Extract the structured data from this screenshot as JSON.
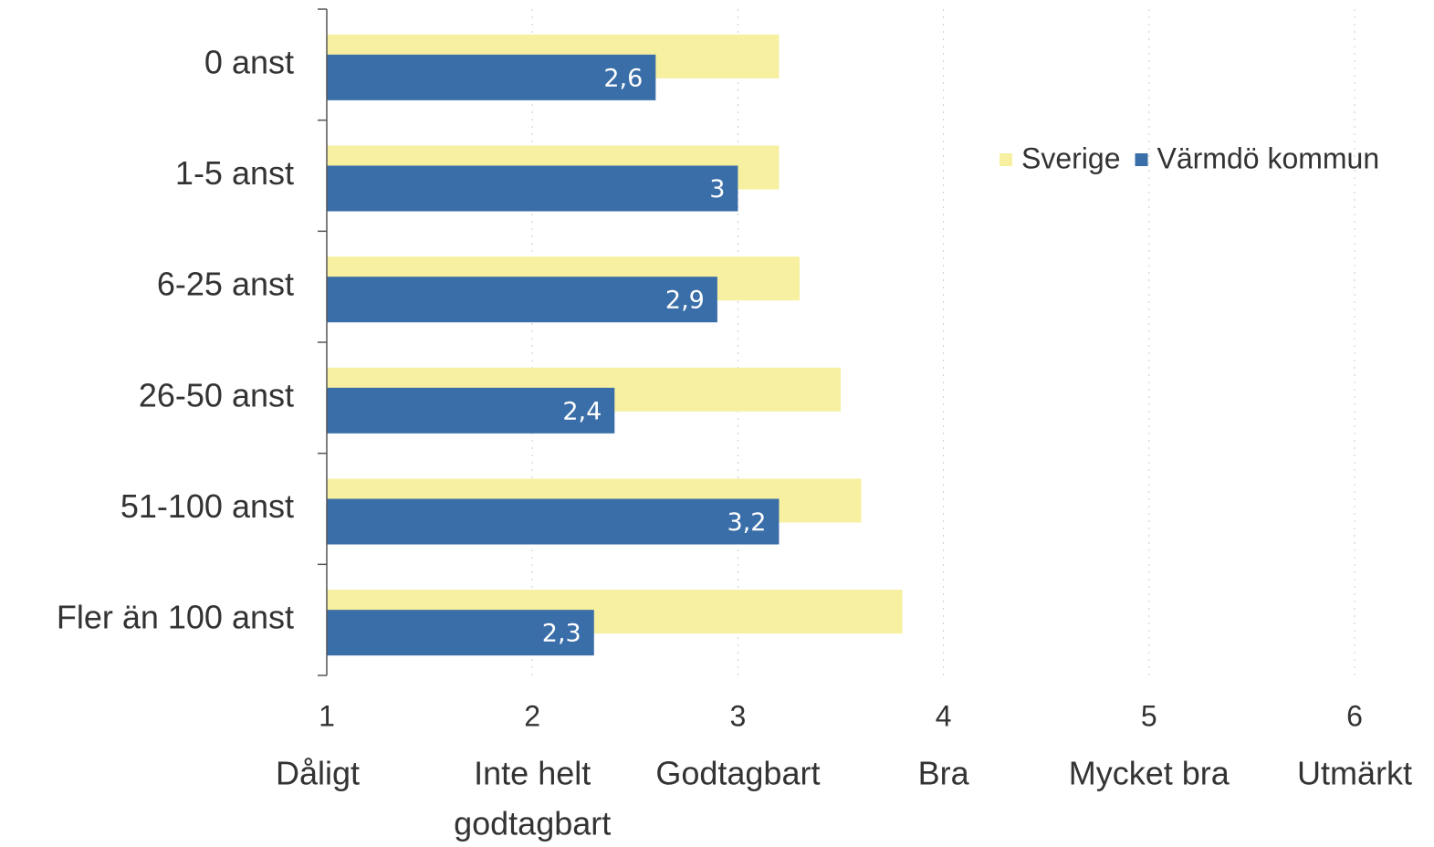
{
  "chart_data": {
    "type": "hbar",
    "categories": [
      "0 anst",
      "1-5 anst",
      "6-25 anst",
      "26-50 anst",
      "51-100 anst",
      "Fler än 100 anst"
    ],
    "series": [
      {
        "name": "Sverige",
        "color": "#f6f0a0",
        "values": [
          3.2,
          3.2,
          3.3,
          3.5,
          3.6,
          3.8
        ]
      },
      {
        "name": "Värmdö kommun",
        "color": "#3a6ea8",
        "values": [
          2.6,
          3,
          2.9,
          2.4,
          3.2,
          2.3
        ],
        "value_labels": [
          "2,6",
          "3",
          "2,9",
          "2,4",
          "3,2",
          "2,3"
        ]
      }
    ],
    "xlim": [
      1,
      6
    ],
    "xticks": [
      1,
      2,
      3,
      4,
      5,
      6
    ],
    "xtick_captions": [
      [
        "Dåligt"
      ],
      [
        "Inte helt",
        "godtagbart"
      ],
      [
        "Godtagbart"
      ],
      [
        "Bra"
      ],
      [
        "Mycket bra"
      ],
      [
        "Utmärkt"
      ]
    ],
    "grid": true,
    "legend": "top-right"
  }
}
